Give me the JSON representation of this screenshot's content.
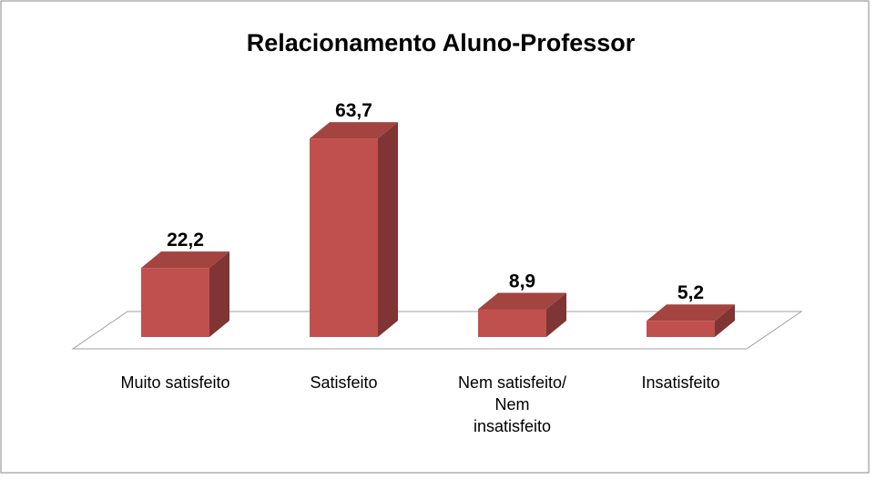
{
  "chart_data": {
    "type": "bar3d",
    "title": "Relacionamento Aluno-Professor",
    "categories": [
      "Muito satisfeito",
      "Satisfeito",
      "Nem satisfeito/ Nem insatisfeito",
      "Insatisfeito"
    ],
    "values": [
      22.2,
      63.7,
      8.9,
      5.2
    ],
    "value_labels": [
      "22,2",
      "63,7",
      "8,9",
      "5,2"
    ],
    "color": "#c0504d"
  }
}
